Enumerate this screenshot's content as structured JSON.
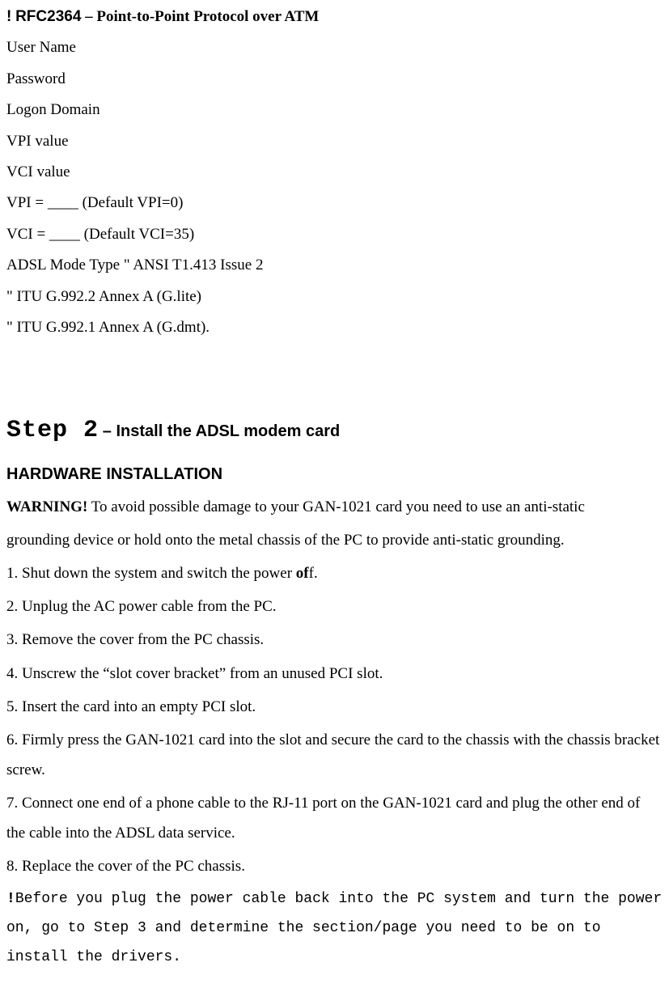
{
  "hdr": {
    "bang": "!",
    "rfc": "RFC2364",
    "dash": " – ",
    "sub": "Point-to-Point Protocol over ATM"
  },
  "fields": {
    "user": "User Name",
    "pass": "Password",
    "domain": "Logon Domain",
    "vpi": "VPI value",
    "vci": "VCI value",
    "vpi_def": "VPI = ____ (Default VPI=0)",
    "vci_def": "VCI = ____ (Default VCI=35)",
    "adsl_mode": "ADSL Mode Type \" ANSI T1.413 Issue 2",
    "glite": "\" ITU G.992.2 Annex A (G.lite)",
    "gdmt": "\" ITU G.992.1 Annex A (G.dmt)."
  },
  "step": {
    "big": "Step 2",
    "sub": " – Install the ADSL modem card"
  },
  "hw_title": "HARDWARE INSTALLATION",
  "warn": {
    "label": "WARNING!",
    "rest1": " To avoid possible damage to your GAN-1021 card you need to use an anti-static",
    "rest2": "grounding device or hold onto the metal chassis of the PC to provide anti-static grounding."
  },
  "steps": {
    "s1a": "1. Shut down the system and switch the power ",
    "s1b": "of",
    "s1c": "f.",
    "s2": "2. Unplug the AC power cable from the PC.",
    "s3": "3. Remove the cover from the PC chassis.",
    "s4": "4. Unscrew the “slot cover bracket” from an unused PCI slot.",
    "s5": "5. Insert the card into an empty PCI slot.",
    "s6": "6. Firmly press the GAN-1021 card into the slot and secure the card to the chassis with the chassis bracket screw.",
    "s7": "7. Connect one end of a phone cable to the RJ-11 port on the GAN-1021 card and plug the other end of the cable into the ADSL data service.",
    "s8": "8. Replace the cover of the PC chassis."
  },
  "note": {
    "bang": "!",
    "text": "Before you plug the power cable back into the PC system and turn the power on, go to Step 3 and determine the section/page you need to be on to install the drivers."
  }
}
